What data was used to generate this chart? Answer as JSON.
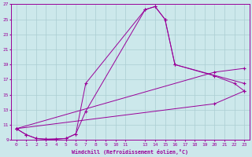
{
  "xlabel": "Windchill (Refroidissement éolien,°C)",
  "ylabel": "",
  "bg_color": "#cce8eb",
  "line_color": "#990099",
  "grid_color": "#aacdd2",
  "xlim": [
    -0.5,
    23.5
  ],
  "ylim": [
    9,
    27
  ],
  "xticks": [
    0,
    1,
    2,
    3,
    4,
    5,
    6,
    7,
    8,
    9,
    10,
    11,
    13,
    14,
    15,
    16,
    17,
    18,
    19,
    20,
    21,
    22,
    23
  ],
  "yticks": [
    9,
    11,
    13,
    15,
    17,
    19,
    21,
    23,
    25,
    27
  ],
  "series": [
    {
      "x": [
        0,
        1,
        2,
        3,
        4,
        5,
        6,
        7,
        13,
        14,
        15,
        16,
        23
      ],
      "y": [
        10.5,
        9.7,
        9.2,
        9.1,
        9.1,
        9.2,
        9.8,
        16.5,
        26.3,
        26.7,
        25.0,
        19.0,
        16.5
      ]
    },
    {
      "x": [
        0,
        1,
        2,
        3,
        5,
        6,
        7,
        13,
        14,
        15,
        16,
        20,
        22,
        23
      ],
      "y": [
        10.5,
        9.7,
        9.2,
        9.1,
        9.2,
        9.8,
        12.8,
        26.3,
        26.7,
        25.0,
        19.0,
        17.5,
        16.5,
        15.5
      ]
    },
    {
      "x": [
        0,
        20,
        23
      ],
      "y": [
        10.5,
        18.0,
        18.5
      ]
    },
    {
      "x": [
        0,
        20,
        23
      ],
      "y": [
        10.5,
        13.8,
        15.5
      ]
    }
  ]
}
